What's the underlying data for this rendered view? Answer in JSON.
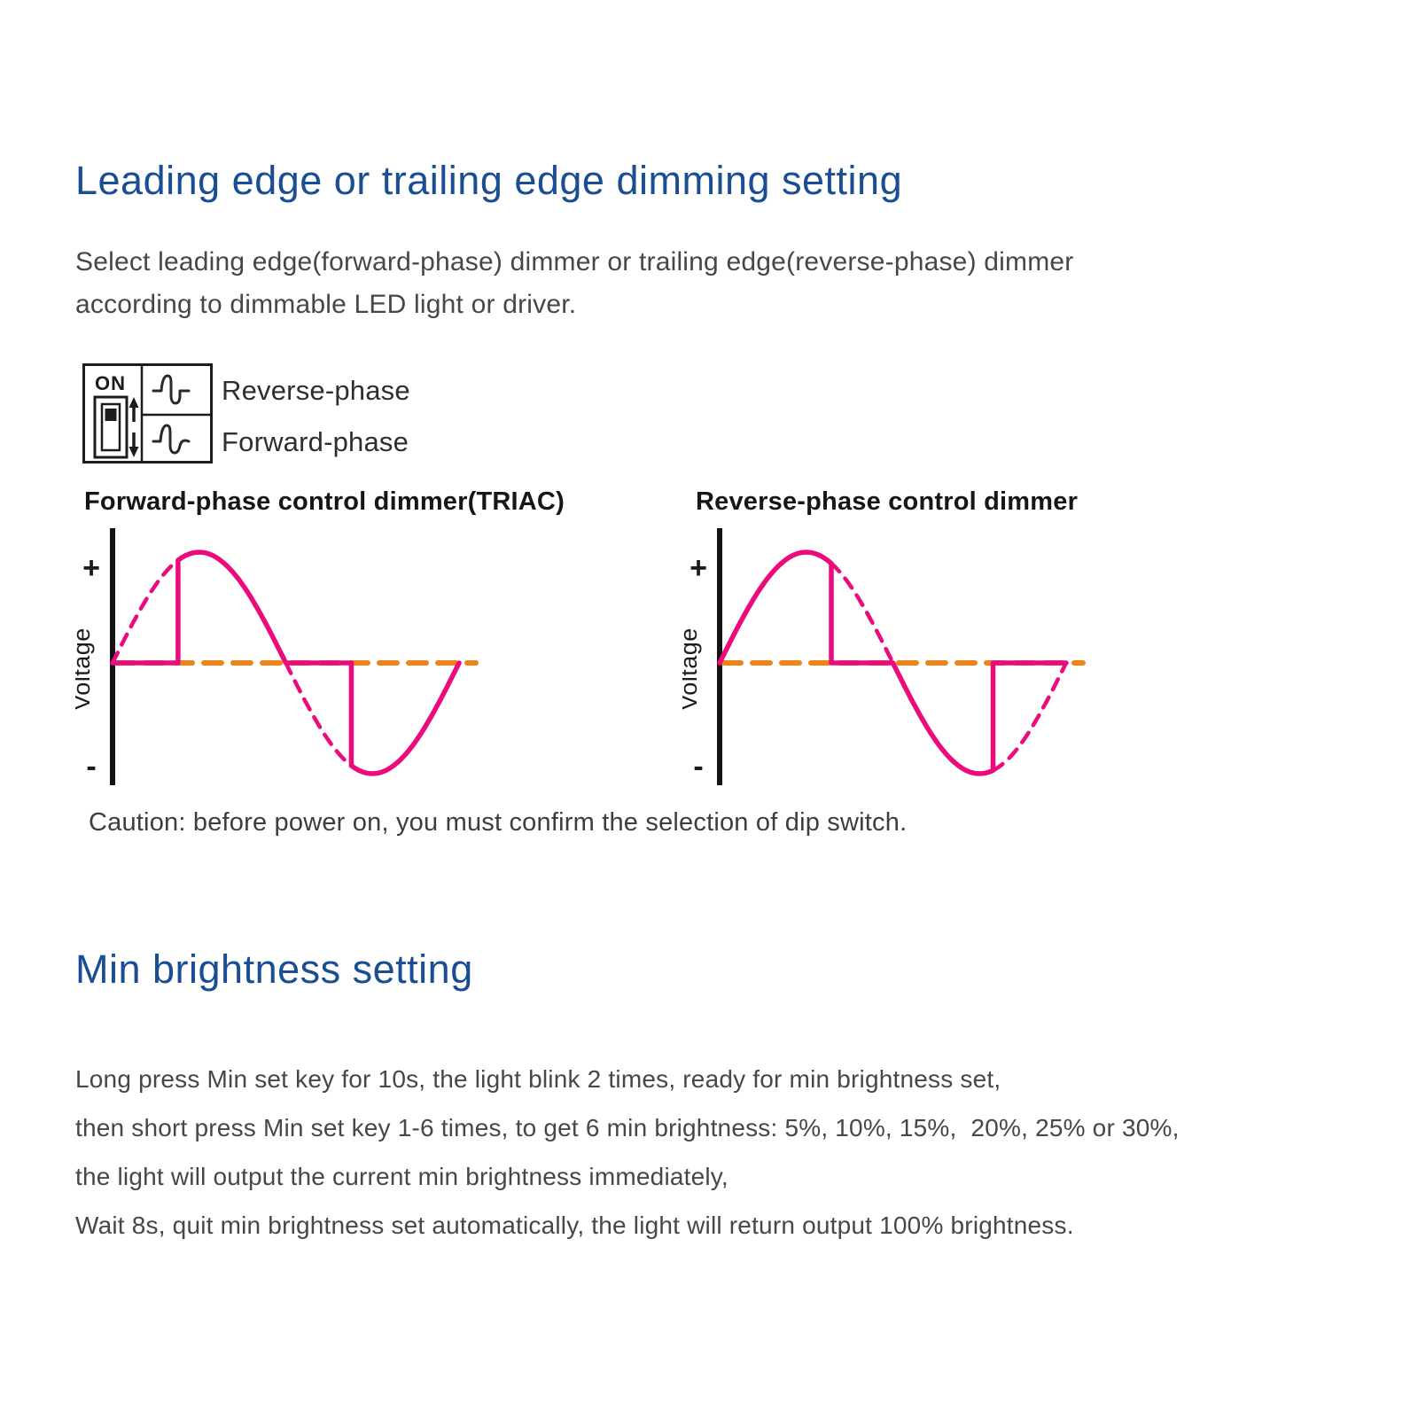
{
  "section1": {
    "title": "Leading edge or trailing edge dimming setting",
    "body_lines": [
      "Select leading edge(forward-phase) dimmer or trailing edge(reverse-phase) dimmer",
      "according to dimmable LED light or driver."
    ]
  },
  "dip_switch": {
    "on_label": "ON",
    "options": [
      {
        "label": "Reverse-phase"
      },
      {
        "label": "Forward-phase"
      }
    ]
  },
  "caution": "Caution: before power on, you must confirm the selection of dip switch.",
  "section2": {
    "title": "Min brightness setting",
    "body_lines": [
      "Long press Min set key for 10s, the light blink 2 times, ready for min brightness set,",
      "then short press Min set key 1-6 times, to get 6 min brightness: 5%, 10%, 15%,  20%, 25% or 30%,",
      "the light will output the current min brightness immediately,",
      "Wait 8s, quit min brightness set automatically, the light will return output 100% brightness."
    ]
  },
  "chart_data": [
    {
      "type": "line",
      "title": "Forward-phase control dimmer(TRIAC)",
      "ylabel": "Voltage",
      "y_axis_top": "+",
      "y_axis_bottom": "-",
      "x_range": "one AC cycle, 0-360 deg",
      "cut_mode": "leading-edge",
      "cut_angles_deg": [
        68,
        248
      ],
      "wave_color": "#EC0B7D",
      "cut_portion_style": "dashed",
      "zero_line_color": "#EF8318",
      "zero_line_style": "dashed",
      "grid": false,
      "legend": false
    },
    {
      "type": "line",
      "title": "Reverse-phase control dimmer",
      "ylabel": "Voltage",
      "y_axis_top": "+",
      "y_axis_bottom": "-",
      "x_range": "one AC cycle, 0-360 deg",
      "cut_mode": "trailing-edge",
      "cut_angles_deg": [
        116,
        284
      ],
      "wave_color": "#EC0B7D",
      "cut_portion_style": "dashed",
      "zero_line_color": "#EF8318",
      "zero_line_style": "dashed",
      "grid": false,
      "legend": false
    }
  ]
}
